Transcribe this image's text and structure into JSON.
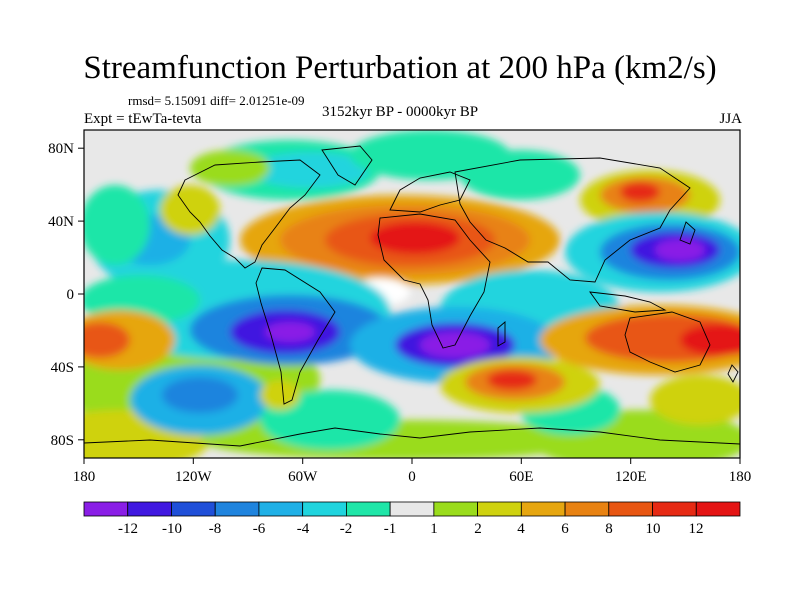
{
  "header": {
    "title": "Streamfunction Perturbation at 200 hPa (km2/s)",
    "stats": "rmsd= 5.15091 diff= 2.01251e-09",
    "experiment": "Expt = tEwTa-tevta",
    "period": "3152kyr BP - 0000kyr BP",
    "season": "JJA"
  },
  "map": {
    "x_ticks": [
      "180",
      "120W",
      "60W",
      "0",
      "60E",
      "120E",
      "180"
    ],
    "y_ticks": [
      "80N",
      "40N",
      "0",
      "40S",
      "80S"
    ]
  },
  "colorbar": {
    "labels": [
      "-12",
      "-10",
      "-8",
      "-6",
      "-4",
      "-2",
      "-1",
      "1",
      "2",
      "4",
      "6",
      "8",
      "10",
      "12"
    ],
    "colors": [
      "#8a1ee6",
      "#4018e0",
      "#1f4fd8",
      "#1f84de",
      "#1fb0e6",
      "#20d4de",
      "#1fe6a8",
      "#e8e8e8",
      "#9adc1c",
      "#cfd20f",
      "#e6a610",
      "#e88212",
      "#e85612",
      "#e62a14",
      "#e41414"
    ]
  }
}
